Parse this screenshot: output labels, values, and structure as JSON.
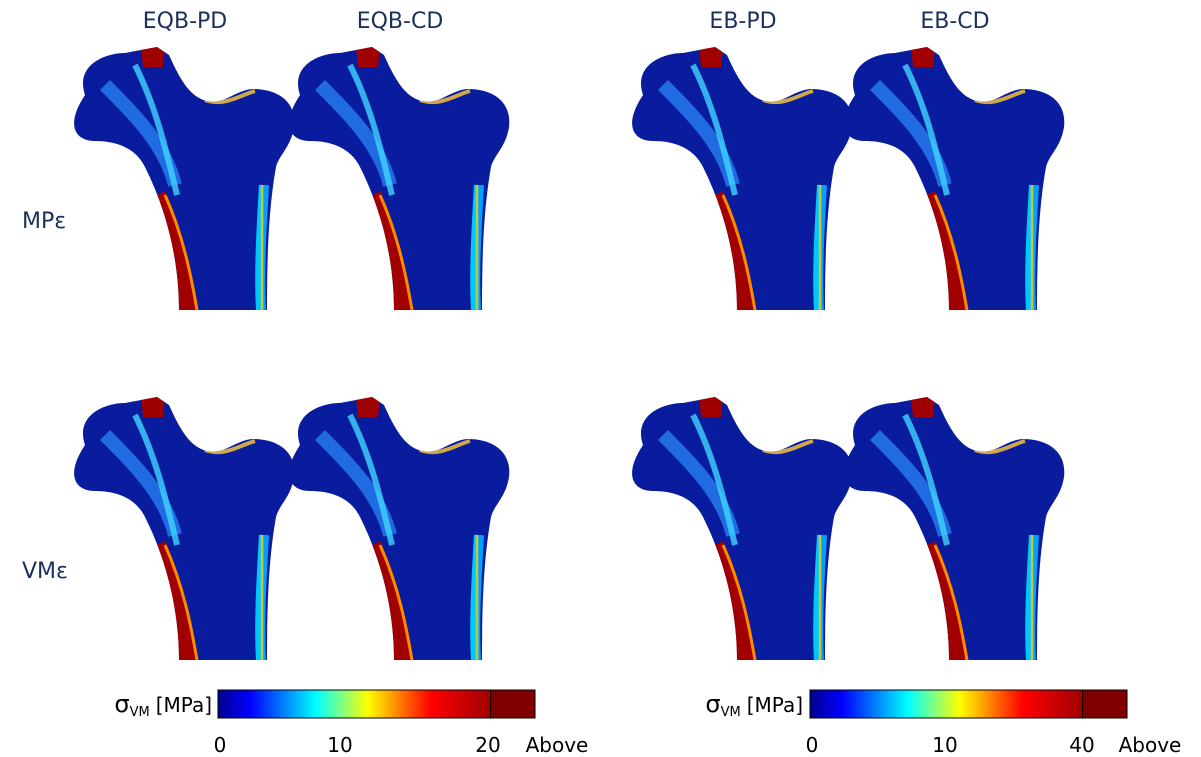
{
  "columns": [
    "EQB-PD",
    "EQB-CD",
    "EB-PD",
    "EB-CD"
  ],
  "rows": [
    "MPε",
    "VMε"
  ],
  "colorbars": [
    {
      "symbol": "σ",
      "subscript": "VM",
      "unit": "[MPa]",
      "ticks": [
        "0",
        "10",
        "20",
        "Above"
      ]
    },
    {
      "symbol": "σ",
      "subscript": "VM",
      "unit": "[MPa]",
      "ticks": [
        "0",
        "10",
        "40",
        "Above"
      ]
    }
  ]
}
